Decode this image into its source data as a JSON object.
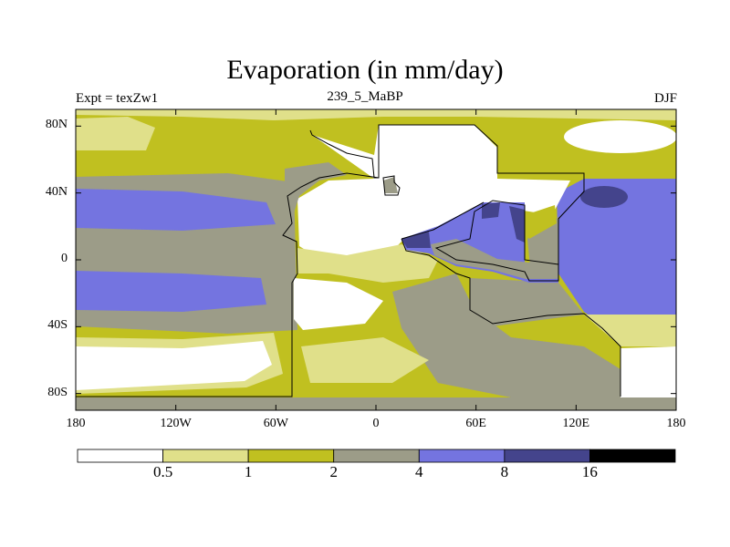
{
  "chart_data": {
    "type": "heatmap",
    "title": "Evaporation (in mm/day)",
    "left_string": "Expt = texZw1",
    "center_string": "239_5_MaBP",
    "right_string": "DJF",
    "lat_ticks": [
      "80N",
      "40N",
      "0",
      "40S",
      "80S"
    ],
    "lat_values": [
      80,
      40,
      0,
      -40,
      -80
    ],
    "lon_ticks": [
      "180",
      "120W",
      "60W",
      "0",
      "60E",
      "120E",
      "180"
    ],
    "lon_values": [
      -180,
      -120,
      -60,
      0,
      60,
      120,
      180
    ],
    "xlim": [
      -180,
      180
    ],
    "ylim": [
      -90,
      90
    ],
    "contour_levels": [
      "0.5",
      "1",
      "2",
      "4",
      "8",
      "16"
    ],
    "level_colors": [
      "#ffffff",
      "#e0e08a",
      "#c0c020",
      "#9c9c88",
      "#7474e0",
      "#44448c",
      "#000000"
    ]
  }
}
